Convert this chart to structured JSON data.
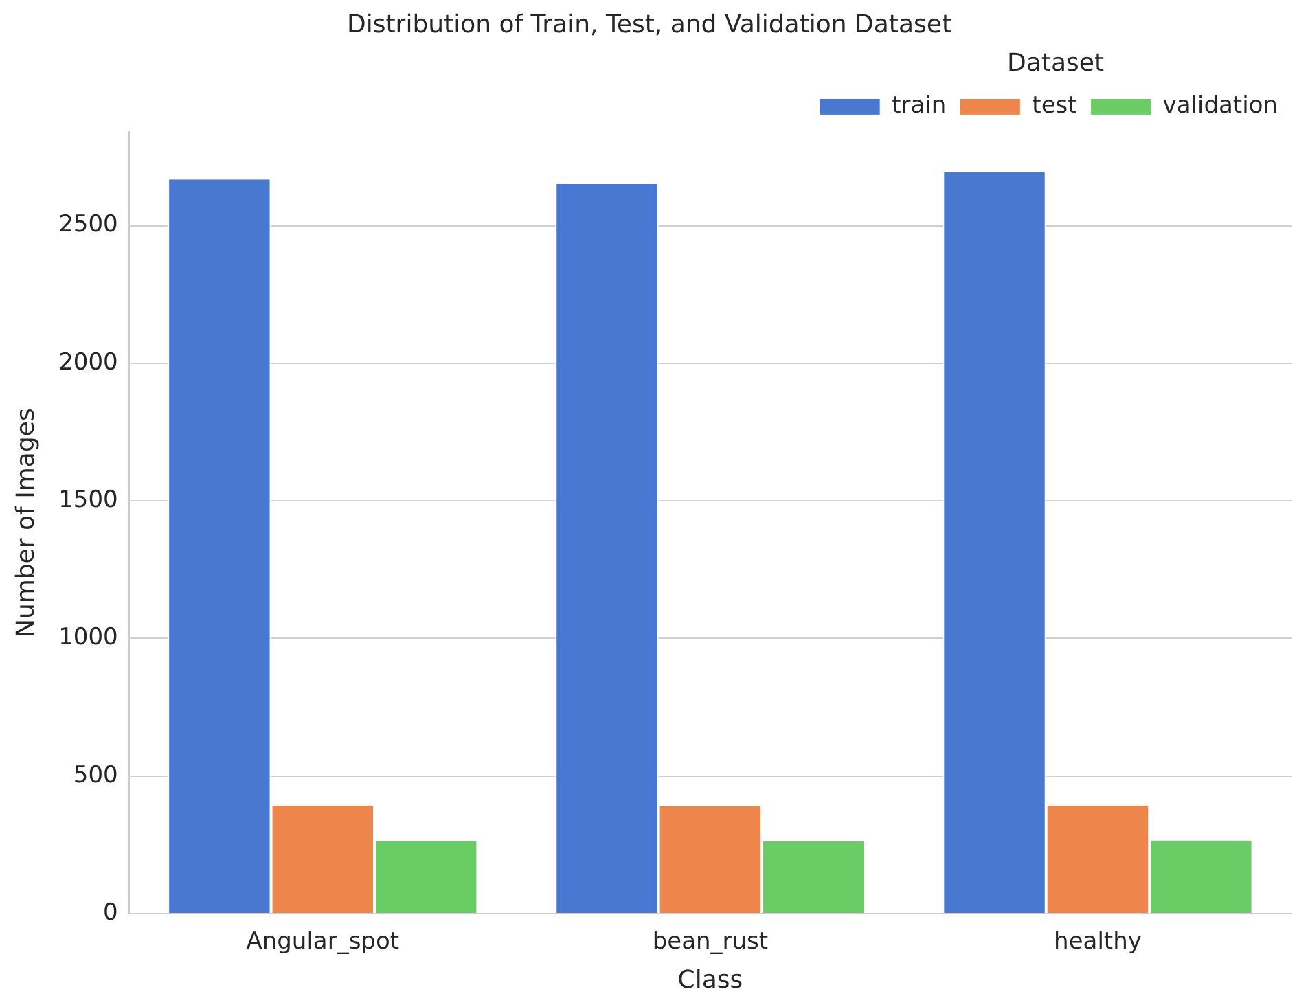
{
  "chart_data": {
    "type": "bar",
    "title": "Distribution of Train, Test, and Validation Dataset",
    "xlabel": "Class",
    "ylabel": "Number of Images",
    "legend_title": "Dataset",
    "categories": [
      "Angular_spot",
      "bean_rust",
      "healthy"
    ],
    "series": [
      {
        "name": "train",
        "color": "#4878d0",
        "values": [
          2668,
          2651,
          2694
        ]
      },
      {
        "name": "test",
        "color": "#ee854a",
        "values": [
          392,
          390,
          392
        ]
      },
      {
        "name": "validation",
        "color": "#6acc64",
        "values": [
          265,
          262,
          266
        ]
      }
    ],
    "ylim": [
      0,
      2840
    ],
    "yticks": [
      0,
      500,
      1000,
      1500,
      2000,
      2500
    ],
    "grid": "y",
    "legend": "top right"
  }
}
